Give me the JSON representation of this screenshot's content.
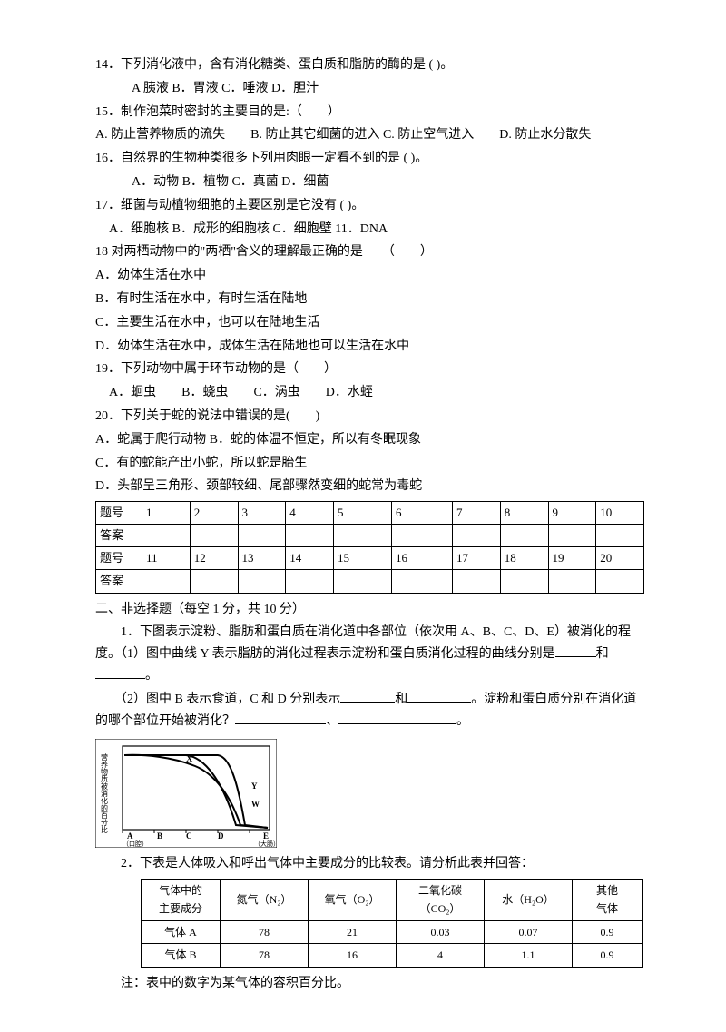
{
  "q14": {
    "text": "14．下列消化液中，含有消化糖类、蛋白质和脂肪的酶的是 ( )。",
    "opts": "A 胰液 B．胃液 C．唾液 D．胆汁"
  },
  "q15": {
    "text": "15．制作泡菜时密封的主要目的是:（　　）",
    "opts": "A. 防止营养物质的流失　　B. 防止其它细菌的进入 C. 防止空气进入　　D. 防止水分散失"
  },
  "q16": {
    "text": "16．自然界的生物种类很多下列用肉眼一定看不到的是 ( )。",
    "opts": "A．动物 B．植物 C．真菌 D．细菌"
  },
  "q17": {
    "text": "17．细菌与动植物细胞的主要区别是它没有 ( )。",
    "opts": "A．细胞核 B．成形的细胞核 C．细胞壁 11．DNA"
  },
  "q18": {
    "text": "18 对两栖动物中的\"两栖\"含义的理解最正确的是　　（　　）",
    "a": "A．幼体生活在水中",
    "b": "B．有时生活在水中，有时生活在陆地",
    "c": "C．主要生活在水中，也可以在陆地生活",
    "d": "D．幼体生活在水中，成体生活在陆地也可以生活在水中"
  },
  "q19": {
    "text": "19．下列动物中属于环节动物的是（　　）",
    "opts": "A．蛔虫　　B．蛲虫　　C．涡虫　　D．水蛭"
  },
  "q20": {
    "text": "20．下列关于蛇的说法中错误的是(　　)",
    "a": "A．蛇属于爬行动物 B．蛇的体温不恒定，所以有冬眠现象",
    "c": "C．有的蛇能产出小蛇，所以蛇是胎生",
    "d": "D．头部呈三角形、颈部较细、尾部骤然变细的蛇常为毒蛇"
  },
  "ans": {
    "row1_label": "题号",
    "row1": [
      "1",
      "2",
      "3",
      "4",
      "5",
      "6",
      "7",
      "8",
      "9",
      "10"
    ],
    "row2_label": "答案",
    "row3_label": "题号",
    "row3": [
      "11",
      "12",
      "13",
      "14",
      "15",
      "16",
      "17",
      "18",
      "19",
      "20"
    ],
    "row4_label": "答案"
  },
  "sec2": {
    "title": "二、非选择题（每空 1 分，共 10 分）",
    "p1a": "　　1．下图表示淀粉、脂肪和蛋白质在消化道中各部位（依次用 A、B、C、D、E）被消化的程度。（1）图中曲线 Y 表示脂肪的消化过程表示淀粉和蛋白质消化过程的曲线分别是",
    "p1b": "和",
    "p1c": "。",
    "p2a": "　　（2）图中 B 表示食道，C 和 D 分别表示",
    "p2b": "和",
    "p2c": "。淀粉和蛋白质分别在消化道的哪个部位开始被消化？",
    "p2d": "、",
    "p2e": "。",
    "q2": "　　2．下表是人体吸入和呼出气体中主要成分的比较表。请分析此表并回答："
  },
  "gas": {
    "headers": [
      "气体中的\n主要成分",
      "氮气（N₂）",
      "氧气（O₂）",
      "二氧化碳\n（CO₂）",
      "水（H₂O）",
      "其他\n气体"
    ],
    "rowA": [
      "气体 A",
      "78",
      "21",
      "0.03",
      "0.07",
      "0.9"
    ],
    "rowB": [
      "气体 B",
      "78",
      "16",
      "4",
      "1.1",
      "0.9"
    ]
  },
  "note": "　　注：表中的数字为某气体的容积百分比。",
  "chart": {
    "ylabel": "营养物质被消化的百分比",
    "xlabels": [
      "A",
      "B",
      "C",
      "D",
      "E"
    ],
    "xsub_left": "（口腔）",
    "xsub_right": "（大肠）",
    "colors": {
      "bg": "#ffffff",
      "stroke": "#000000"
    }
  }
}
